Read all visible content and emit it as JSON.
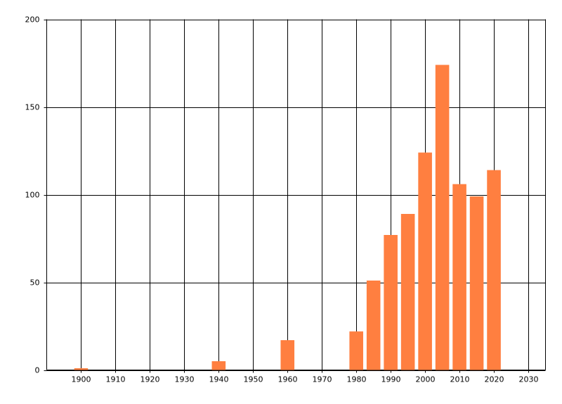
{
  "chart_data": {
    "type": "bar",
    "x": [
      1900,
      1940,
      1960,
      1980,
      1985,
      1990,
      1995,
      2000,
      2005,
      2010,
      2015,
      2020
    ],
    "values": [
      1,
      5,
      17,
      22,
      51,
      77,
      89,
      124,
      174,
      106,
      99,
      114
    ],
    "color": "#ff7f40",
    "xlim": [
      1890,
      2035
    ],
    "xticks": [
      1900,
      1910,
      1920,
      1930,
      1940,
      1950,
      1960,
      1970,
      1980,
      1990,
      2000,
      2010,
      2020,
      2030
    ],
    "ylim": [
      0,
      200
    ],
    "yticks": [
      0,
      50,
      100,
      150,
      200
    ],
    "grid": true
  }
}
